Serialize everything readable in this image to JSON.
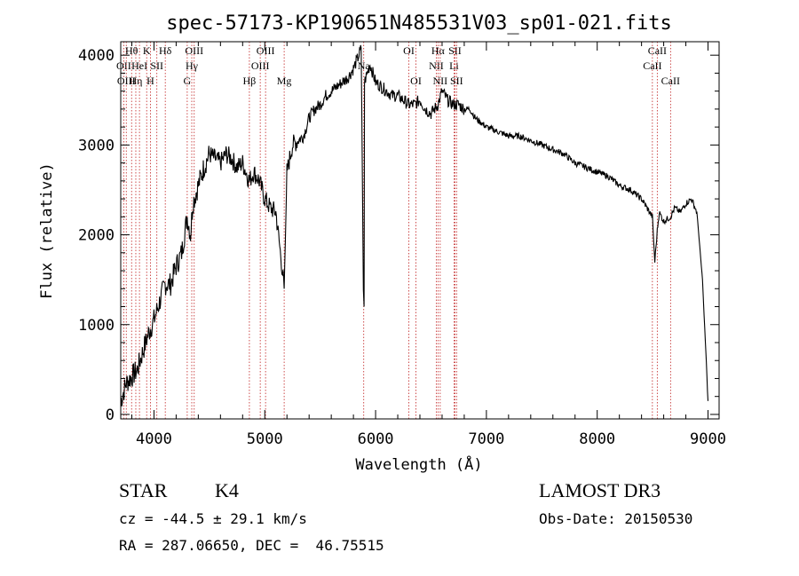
{
  "chart_data": {
    "type": "line",
    "title": "spec-57173-KP190651N485531V03_sp01-021.fits",
    "xlabel": "Wavelength (Å)",
    "ylabel": "Flux (relative)",
    "xlim": [
      3700,
      9100
    ],
    "ylim": [
      -50,
      4150
    ],
    "xticks": [
      4000,
      5000,
      6000,
      7000,
      8000,
      9000
    ],
    "yticks": [
      0,
      1000,
      2000,
      3000,
      4000
    ],
    "grid": false,
    "series": [
      {
        "x": [
          3700,
          3750,
          3800,
          3850,
          3900,
          3950,
          4000,
          4050,
          4100,
          4150,
          4200,
          4250,
          4300,
          4330,
          4350,
          4400,
          4450,
          4500,
          4550,
          4600,
          4650,
          4700,
          4750,
          4800,
          4860,
          4900,
          4950,
          5000,
          5050,
          5100,
          5150,
          5175,
          5200,
          5250,
          5300,
          5350,
          5400,
          5450,
          5500,
          5550,
          5600,
          5650,
          5700,
          5750,
          5800,
          5850,
          5870,
          5890,
          5896,
          5900,
          5950,
          6000,
          6050,
          6100,
          6150,
          6200,
          6250,
          6300,
          6350,
          6400,
          6450,
          6500,
          6563,
          6600,
          6650,
          6700,
          6750,
          6800,
          6850,
          6900,
          7000,
          7100,
          7200,
          7300,
          7400,
          7500,
          7600,
          7700,
          7800,
          7900,
          8000,
          8100,
          8200,
          8300,
          8400,
          8498,
          8520,
          8542,
          8560,
          8600,
          8662,
          8700,
          8750,
          8800,
          8850,
          8900,
          8950,
          8980,
          9000
        ],
        "values": [
          150,
          350,
          420,
          500,
          700,
          900,
          1050,
          1250,
          1450,
          1450,
          1650,
          1800,
          2200,
          2000,
          2350,
          2550,
          2750,
          2900,
          2850,
          2800,
          2900,
          2850,
          2750,
          2800,
          2600,
          2700,
          2600,
          2400,
          2300,
          2250,
          1700,
          1400,
          2700,
          3000,
          3050,
          3100,
          3300,
          3400,
          3450,
          3550,
          3600,
          3650,
          3700,
          3750,
          3850,
          4000,
          4080,
          1400,
          1200,
          3700,
          3900,
          3700,
          3650,
          3600,
          3550,
          3550,
          3500,
          3450,
          3450,
          3500,
          3400,
          3350,
          3450,
          3600,
          3500,
          3450,
          3450,
          3400,
          3400,
          3300,
          3200,
          3150,
          3100,
          3100,
          3050,
          3000,
          2950,
          2900,
          2800,
          2750,
          2700,
          2650,
          2550,
          2500,
          2400,
          2200,
          1700,
          2050,
          2250,
          2150,
          2200,
          2300,
          2250,
          2350,
          2400,
          2250,
          1500,
          700,
          150
        ]
      }
    ],
    "lines": [
      {
        "wl": 3727,
        "label": "OII",
        "row": 1
      },
      {
        "wl": 3750,
        "label": "OIII",
        "row": 2
      },
      {
        "wl": 3798,
        "label": "Hθ",
        "row": 0
      },
      {
        "wl": 3836,
        "label": "Hη",
        "row": 2
      },
      {
        "wl": 3869,
        "label": "HeI",
        "row": 1
      },
      {
        "wl": 3934,
        "label": "K",
        "row": 0
      },
      {
        "wl": 3968,
        "label": "H",
        "row": 2
      },
      {
        "wl": 4026,
        "label": "SII",
        "row": 1
      },
      {
        "wl": 4102,
        "label": "Hδ",
        "row": 0
      },
      {
        "wl": 4300,
        "label": "G",
        "row": 2
      },
      {
        "wl": 4341,
        "label": "Hγ",
        "row": 1
      },
      {
        "wl": 4363,
        "label": "OIII",
        "row": 0
      },
      {
        "wl": 4861,
        "label": "Hβ",
        "row": 2
      },
      {
        "wl": 4959,
        "label": "OIII",
        "row": 1
      },
      {
        "wl": 5007,
        "label": "OIII",
        "row": 0
      },
      {
        "wl": 5175,
        "label": "Mg",
        "row": 2
      },
      {
        "wl": 5893,
        "label": "Na",
        "row": 1
      },
      {
        "wl": 6300,
        "label": "OI",
        "row": 0
      },
      {
        "wl": 6364,
        "label": "OI",
        "row": 2
      },
      {
        "wl": 6548,
        "label": "NII",
        "row": 1
      },
      {
        "wl": 6563,
        "label": "Hα",
        "row": 0
      },
      {
        "wl": 6583,
        "label": "NII",
        "row": 2
      },
      {
        "wl": 6708,
        "label": "Li",
        "row": 1
      },
      {
        "wl": 6716,
        "label": "SII",
        "row": 0
      },
      {
        "wl": 6731,
        "label": "SII",
        "row": 2
      },
      {
        "wl": 8498,
        "label": "CaII",
        "row": 1
      },
      {
        "wl": 8542,
        "label": "CaII",
        "row": 0
      },
      {
        "wl": 8662,
        "label": "CaII",
        "row": 2
      }
    ]
  },
  "info": {
    "object_class": "STAR",
    "subclass": "K4",
    "survey": "LAMOST DR3",
    "cz": "cz = -44.5 ± 29.1 km/s",
    "obs_date": "Obs-Date: 20150530",
    "coords": "RA = 287.06650, DEC =  46.75515"
  }
}
